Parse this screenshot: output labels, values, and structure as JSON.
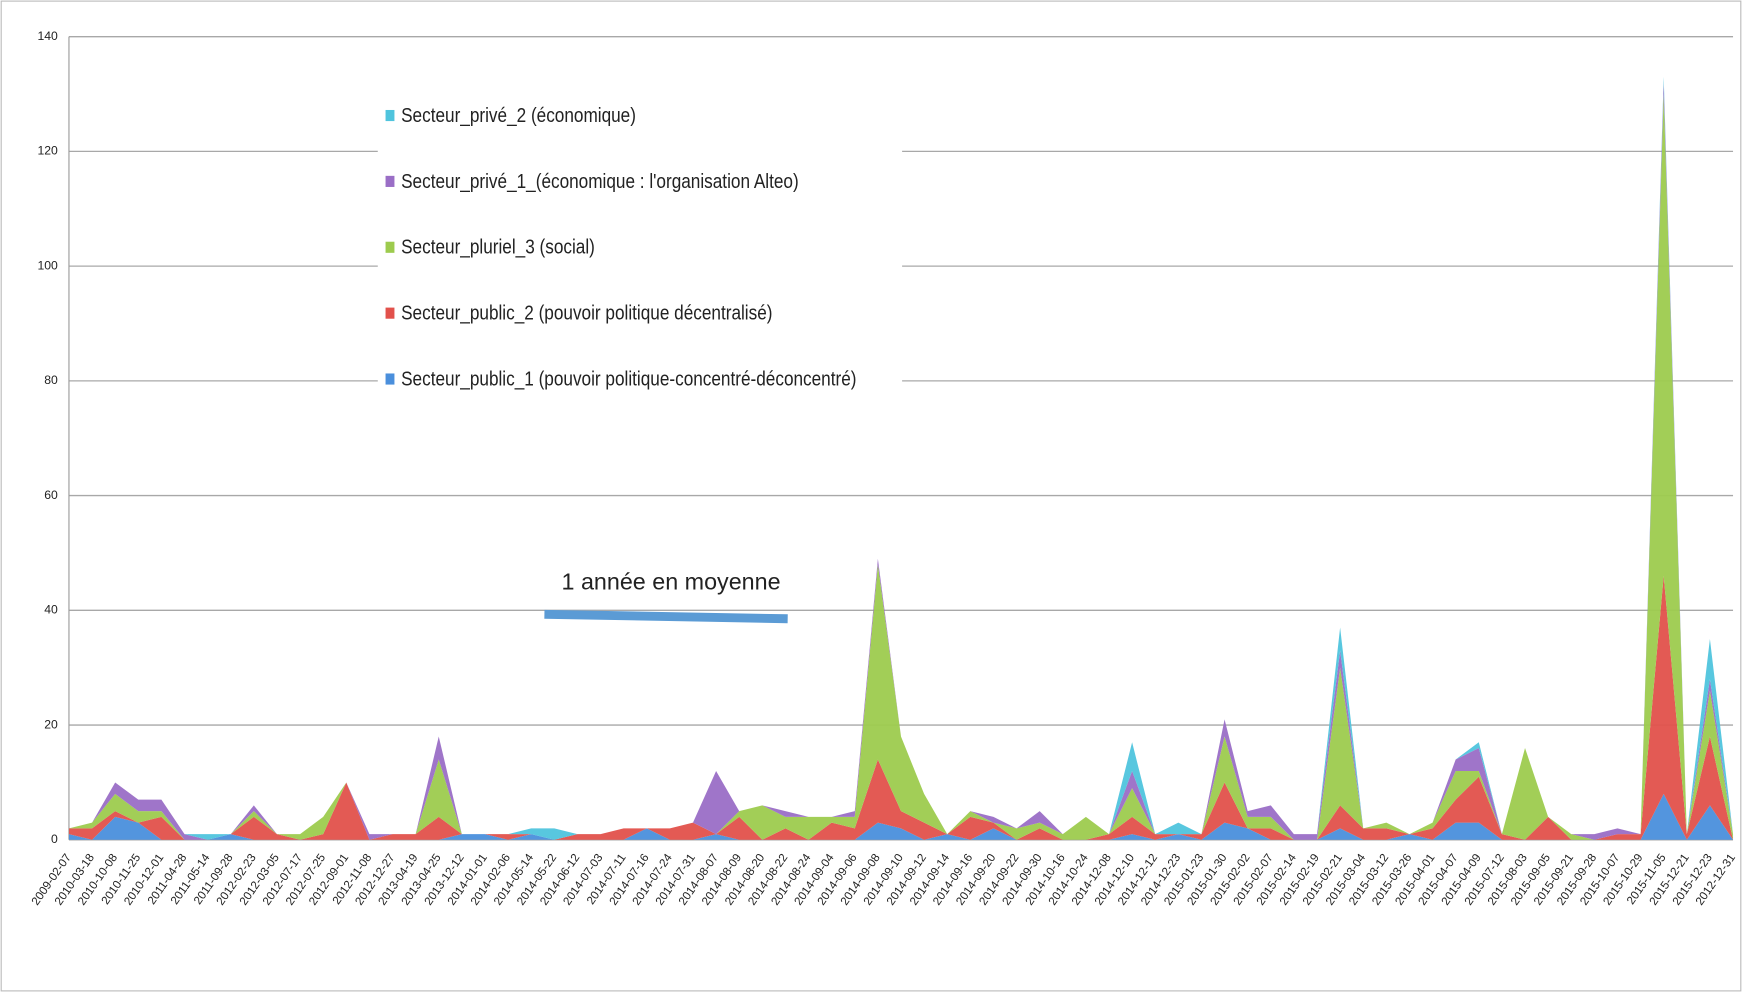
{
  "chart_data": {
    "type": "stacked_area",
    "categories": [
      "2009-02-07",
      "2010-03-18",
      "2010-10-08",
      "2010-11-25",
      "2010-12-01",
      "2011-04-28",
      "2011-05-14",
      "2011-09-28",
      "2012-02-23",
      "2012-03-05",
      "2012-07-17",
      "2012-07-25",
      "2012-09-01",
      "2012-11-08",
      "2012-12-27",
      "2013-04-19",
      "2013-04-25",
      "2013-12-12",
      "2014-01-01",
      "2014-02-06",
      "2014-05-14",
      "2014-05-22",
      "2014-06-12",
      "2014-07-03",
      "2014-07-11",
      "2014-07-16",
      "2014-07-24",
      "2014-07-31",
      "2014-08-07",
      "2014-08-09",
      "2014-08-20",
      "2014-08-22",
      "2014-08-24",
      "2014-09-04",
      "2014-09-06",
      "2014-09-08",
      "2014-09-10",
      "2014-09-12",
      "2014-09-14",
      "2014-09-16",
      "2014-09-20",
      "2014-09-22",
      "2014-09-30",
      "2014-10-16",
      "2014-10-24",
      "2014-12-08",
      "2014-12-10",
      "2014-12-12",
      "2014-12-23",
      "2015-01-23",
      "2015-01-30",
      "2015-02-02",
      "2015-02-07",
      "2015-02-14",
      "2015-02-19",
      "2015-02-21",
      "2015-03-04",
      "2015-03-12",
      "2015-03-26",
      "2015-04-01",
      "2015-04-07",
      "2015-04-09",
      "2015-07-12",
      "2015-08-03",
      "2015-09-05",
      "2015-09-21",
      "2015-09-28",
      "2015-10-07",
      "2015-10-29",
      "2015-11-05",
      "2015-12-21",
      "2015-12-23",
      "2012-12-31"
    ],
    "series": [
      {
        "name": "Secteur_public_1 (pouvoir politique-concentré-déconcentré)",
        "color": "#4a8fdc",
        "values": [
          1,
          0,
          4,
          3,
          0,
          0,
          0,
          1,
          0,
          0,
          0,
          0,
          0,
          0,
          0,
          0,
          0,
          1,
          1,
          0,
          1,
          0,
          0,
          0,
          0,
          2,
          0,
          0,
          1,
          0,
          0,
          0,
          0,
          0,
          0,
          3,
          2,
          0,
          1,
          0,
          2,
          0,
          0,
          0,
          0,
          0,
          1,
          0,
          1,
          0,
          3,
          2,
          0,
          0,
          0,
          2,
          0,
          0,
          1,
          0,
          3,
          3,
          0,
          0,
          0,
          0,
          0,
          0,
          0,
          8,
          0,
          6,
          0
        ]
      },
      {
        "name": "Secteur_public_2 (pouvoir politique décentralisé)",
        "color": "#e2514b",
        "values": [
          1,
          2,
          1,
          0,
          4,
          0,
          0,
          0,
          4,
          1,
          0,
          1,
          10,
          0,
          1,
          1,
          4,
          0,
          0,
          1,
          0,
          0,
          1,
          1,
          2,
          0,
          2,
          3,
          0,
          4,
          0,
          2,
          0,
          3,
          2,
          11,
          3,
          3,
          0,
          4,
          1,
          0,
          2,
          0,
          0,
          1,
          3,
          1,
          0,
          1,
          7,
          0,
          2,
          0,
          0,
          4,
          2,
          2,
          0,
          2,
          4,
          8,
          1,
          0,
          4,
          0,
          0,
          1,
          1,
          38,
          1,
          12,
          0
        ]
      },
      {
        "name": "Secteur_pluriel_3 (social)",
        "color": "#9dcb4e",
        "values": [
          0,
          1,
          3,
          2,
          1,
          0,
          0,
          0,
          1,
          0,
          1,
          3,
          0,
          0,
          0,
          0,
          10,
          0,
          0,
          0,
          0,
          0,
          0,
          0,
          0,
          0,
          0,
          0,
          0,
          1,
          6,
          2,
          4,
          1,
          2,
          34,
          13,
          5,
          0,
          1,
          0,
          2,
          1,
          1,
          4,
          0,
          5,
          0,
          0,
          0,
          8,
          2,
          2,
          0,
          0,
          24,
          0,
          1,
          0,
          1,
          5,
          1,
          0,
          16,
          0,
          1,
          0,
          0,
          0,
          84,
          0,
          8,
          1
        ]
      },
      {
        "name": "Secteur_privé_1_(économique : l'organisation Alteo)",
        "color": "#9a6ec6",
        "values": [
          0,
          0,
          2,
          2,
          2,
          1,
          0,
          0,
          1,
          0,
          0,
          0,
          0,
          1,
          0,
          0,
          4,
          0,
          0,
          0,
          0,
          0,
          0,
          0,
          0,
          0,
          0,
          0,
          11,
          0,
          0,
          1,
          0,
          0,
          1,
          1,
          0,
          0,
          0,
          0,
          1,
          0,
          2,
          0,
          0,
          0,
          3,
          0,
          0,
          0,
          3,
          1,
          2,
          1,
          1,
          3,
          0,
          0,
          0,
          0,
          2,
          4,
          0,
          0,
          0,
          0,
          1,
          1,
          0,
          2,
          0,
          2,
          0
        ]
      },
      {
        "name": "Secteur_privé_2 (économique)",
        "color": "#4fc4dd",
        "values": [
          0,
          0,
          0,
          0,
          0,
          0,
          1,
          0,
          0,
          0,
          0,
          0,
          0,
          0,
          0,
          0,
          0,
          0,
          0,
          0,
          1,
          2,
          0,
          0,
          0,
          0,
          0,
          0,
          0,
          0,
          0,
          0,
          0,
          0,
          0,
          0,
          0,
          0,
          0,
          0,
          0,
          0,
          0,
          0,
          0,
          0,
          5,
          0,
          2,
          0,
          0,
          0,
          0,
          0,
          0,
          4,
          0,
          0,
          0,
          0,
          0,
          1,
          0,
          0,
          0,
          0,
          0,
          0,
          0,
          1,
          0,
          7,
          0
        ]
      }
    ],
    "ylim": [
      0,
      140
    ],
    "yticks": [
      0,
      20,
      40,
      60,
      80,
      100,
      120,
      140
    ],
    "grid": true,
    "annotation": "1 année en moyenne"
  }
}
